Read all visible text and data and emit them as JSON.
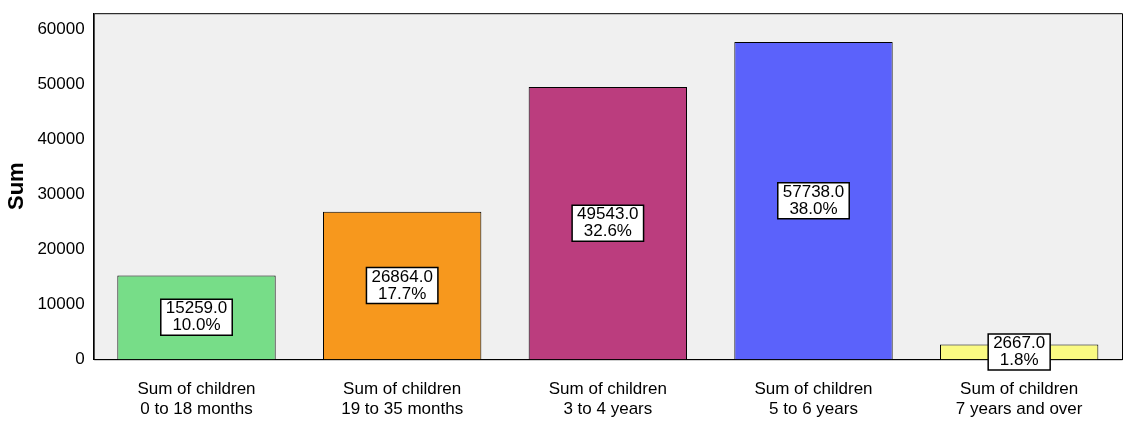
{
  "chart_data": {
    "type": "bar",
    "ylabel": "Sum",
    "categories": [
      "Sum of children 0 to 18 months",
      "Sum of children 19 to 35 months",
      "Sum of children 3 to 4 years",
      "Sum of children 5 to 6 years",
      "Sum of children 7 years and over"
    ],
    "values": [
      15259,
      26864,
      49543,
      57738,
      2667
    ],
    "colors": [
      "#77dd88",
      "#f7981d",
      "#bb3d7e",
      "#5b62fb",
      "#fafa82"
    ],
    "value_labels": [
      "15259.0\n10.0%",
      "26864.0\n17.7%",
      "49543.0\n32.6%",
      "57738.0\n38.0%",
      "2667.0\n1.8%"
    ],
    "ylim": [
      0,
      63000
    ],
    "yticks": [
      0,
      10000,
      20000,
      30000,
      40000,
      50000,
      60000
    ],
    "grid": false,
    "legend": false
  }
}
